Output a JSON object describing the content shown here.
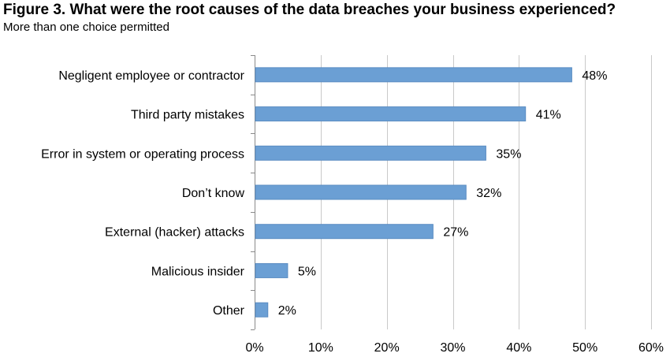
{
  "chart_data": {
    "type": "bar",
    "orientation": "horizontal",
    "title": "Figure 3. What were the root causes of the data breaches your business experienced?",
    "subtitle": "More than one choice permitted",
    "categories": [
      "Negligent employee or contractor",
      "Third party mistakes",
      "Error in system or operating process",
      "Don’t know",
      "External (hacker) attacks",
      "Malicious insider",
      "Other"
    ],
    "values": [
      48,
      41,
      35,
      32,
      27,
      5,
      2
    ],
    "value_labels": [
      "48%",
      "41%",
      "35%",
      "32%",
      "27%",
      "5%",
      "2%"
    ],
    "xlim": [
      0,
      60
    ],
    "x_ticks": [
      0,
      10,
      20,
      30,
      40,
      50,
      60
    ],
    "x_tick_labels": [
      "0%",
      "10%",
      "20%",
      "30%",
      "40%",
      "50%",
      "60%"
    ],
    "grid": "vertical",
    "legend": "none",
    "bar_color": "#6b9fd4",
    "bar_edge_color": "#5a8cc2",
    "grid_color": "#c9c9c9"
  }
}
